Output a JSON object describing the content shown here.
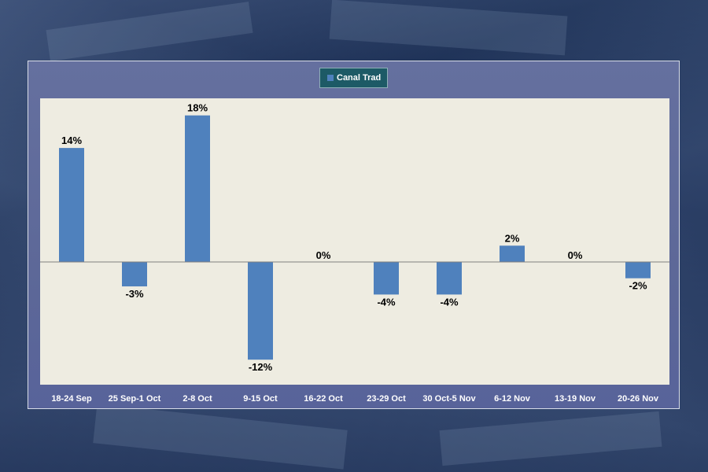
{
  "chart_data": {
    "type": "bar",
    "categories": [
      "18-24 Sep",
      "25 Sep-1 Oct",
      "2-8 Oct",
      "9-15 Oct",
      "16-22 Oct",
      "23-29 Oct",
      "30 Oct-5 Nov",
      "6-12 Nov",
      "13-19 Nov",
      "20-26 Nov"
    ],
    "series": [
      {
        "name": "Canal Trad",
        "values": [
          14,
          -3,
          18,
          -12,
          0,
          -4,
          -4,
          2,
          0,
          -2
        ],
        "labels": [
          "14%",
          "-3%",
          "18%",
          "-12%",
          "0%",
          "-4%",
          "-4%",
          "2%",
          "0%",
          "-2%"
        ]
      }
    ],
    "ylim": [
      -15,
      20
    ],
    "grid": false,
    "legend": "top-center",
    "title": "",
    "xlabel": "",
    "ylabel": "",
    "colors": {
      "bar": "#4f81bd",
      "plot_background": "#eeece1",
      "frame_background": "#5f6a9b",
      "legend_background": "#1d5a66",
      "axis_line": "#808080"
    }
  }
}
